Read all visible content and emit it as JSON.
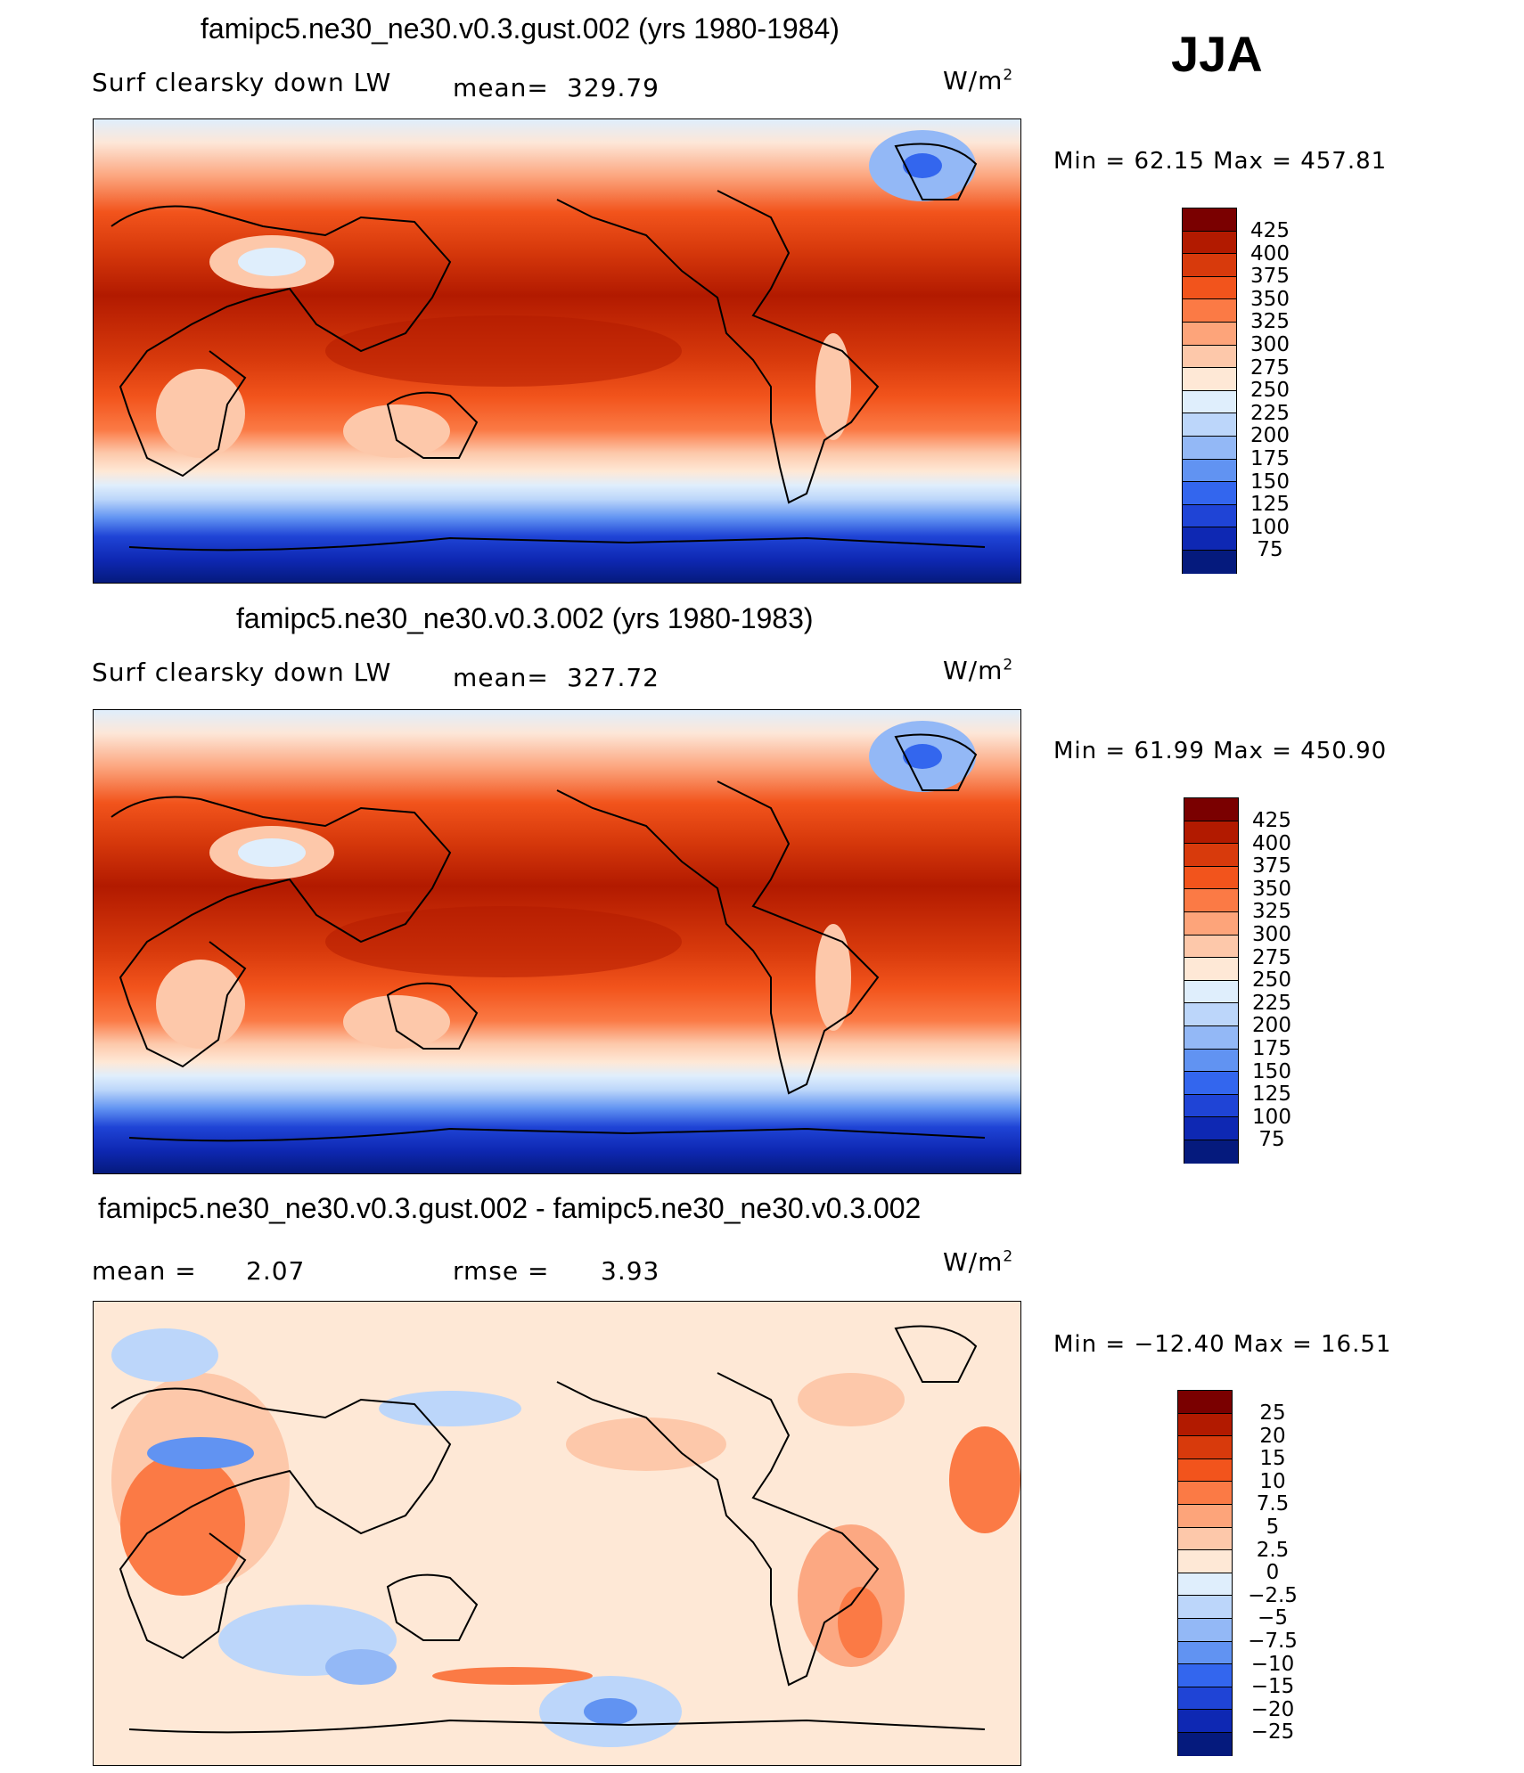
{
  "season": "JJA",
  "units": "W/m",
  "units_sup": "2",
  "panels": [
    {
      "title": "famipc5.ne30_ne30.v0.3.gust.002 (yrs 1980-1984)",
      "left_label": "Surf clearsky down LW",
      "stat_label": "mean=",
      "stat_value": "329.79",
      "minmax": "Min =   62.15  Max  =  457.81",
      "levels": [
        "425",
        "400",
        "375",
        "350",
        "325",
        "300",
        "275",
        "250",
        "225",
        "200",
        "175",
        "150",
        "125",
        "100",
        "75"
      ]
    },
    {
      "title": "famipc5.ne30_ne30.v0.3.002 (yrs 1980-1983)",
      "left_label": "Surf clearsky down LW",
      "stat_label": "mean=",
      "stat_value": "327.72",
      "minmax": "Min =   61.99  Max  =  450.90",
      "levels": [
        "425",
        "400",
        "375",
        "350",
        "325",
        "300",
        "275",
        "250",
        "225",
        "200",
        "175",
        "150",
        "125",
        "100",
        "75"
      ]
    },
    {
      "title": "famipc5.ne30_ne30.v0.3.gust.002 - famipc5.ne30_ne30.v0.3.002",
      "left_label": "mean =",
      "left_value": "2.07",
      "stat_label": "rmse =",
      "stat_value": "3.93",
      "minmax": "Min = −12.40  Max =    16.51",
      "levels": [
        "25",
        "20",
        "15",
        "10",
        "7.5",
        "5",
        "2.5",
        "0",
        "−2.5",
        "−5",
        "−7.5",
        "−10",
        "−15",
        "−20",
        "−25"
      ]
    }
  ],
  "colors": [
    "#7a0000",
    "#b21a00",
    "#d83a0c",
    "#f2541c",
    "#fb7a45",
    "#fda47a",
    "#fdc8aa",
    "#fee8d6",
    "#dfeefc",
    "#bcd6fa",
    "#93b8f6",
    "#6193f2",
    "#3366ee",
    "#1f44d6",
    "#0e28b3",
    "#051a7d"
  ]
}
